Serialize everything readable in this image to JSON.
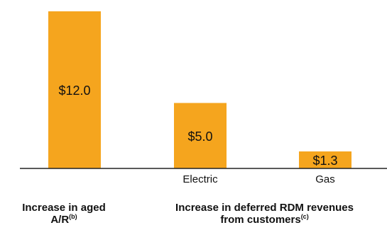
{
  "colors": {
    "bar": "#F5A51E",
    "axis": "#222222",
    "text": "#111111"
  },
  "chart_data": {
    "type": "bar",
    "categories": [
      "",
      "Electric",
      "Gas"
    ],
    "values": [
      12.0,
      5.0,
      1.3
    ],
    "data_labels": [
      "$12.0",
      "$5.0",
      "$1.3"
    ],
    "ylim": [
      0,
      12.0
    ],
    "grid": false,
    "legend": "none",
    "groups": [
      {
        "label": "Increase in aged A/R",
        "footnote": "(b)",
        "bars": [
          0
        ]
      },
      {
        "label": "Increase in deferred RDM revenues from customers",
        "footnote": "(c)",
        "bars": [
          1,
          2
        ]
      }
    ]
  },
  "group_titles": {
    "group1_line1": "Increase in aged",
    "group1_line2": "A/R",
    "group1_note": "(b)",
    "group2_line1": "Increase in deferred RDM revenues",
    "group2_line2": "from customers",
    "group2_note": "(c)"
  }
}
